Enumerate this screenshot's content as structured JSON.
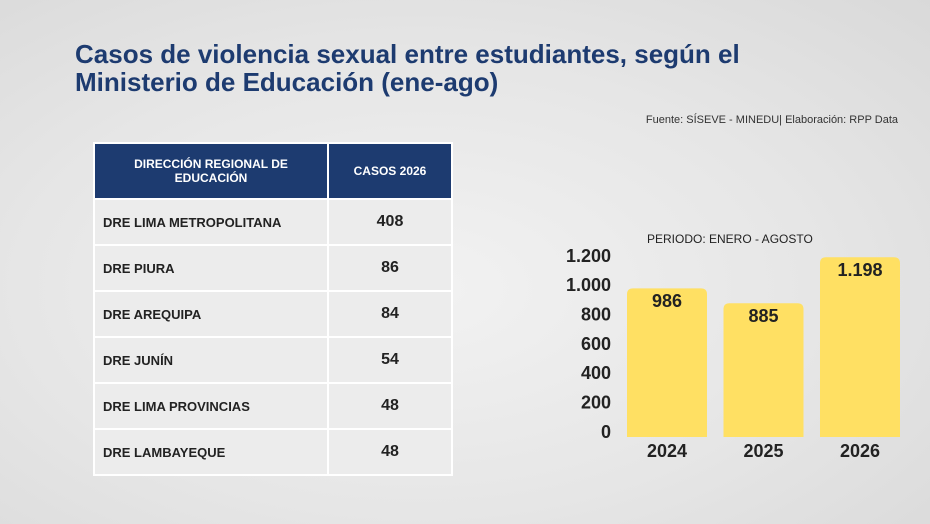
{
  "title": "Casos de violencia sexual entre estudiantes, según el Ministerio de Educación (ene-ago)",
  "source": "Fuente: SÍSEVE - MINEDU| Elaboración: RPP Data",
  "table": {
    "header": [
      "DIRECCIÓN REGIONAL DE EDUCACIÓN",
      "CASOS 2026"
    ],
    "rows": [
      [
        "DRE LIMA METROPOLITANA",
        408
      ],
      [
        "DRE PIURA",
        86
      ],
      [
        "DRE AREQUIPA",
        84
      ],
      [
        "DRE JUNÍN",
        54
      ],
      [
        "DRE LIMA PROVINCIAS",
        48
      ],
      [
        "DRE LAMBAYEQUE",
        48
      ]
    ]
  },
  "chart_data": {
    "type": "bar",
    "subtitle": "PERIODO: ENERO - AGOSTO",
    "categories": [
      "2024",
      "2025",
      "2026"
    ],
    "values": [
      986,
      885,
      1198
    ],
    "value_labels": [
      "986",
      "885",
      "1.198"
    ],
    "color": "#ffe063",
    "ylim": [
      0,
      1200
    ],
    "yticks": [
      0,
      200,
      400,
      600,
      800,
      {
        "value": 1000,
        "label": "1.000"
      },
      {
        "value": 1200,
        "label": "1.200"
      }
    ],
    "grid": false
  }
}
